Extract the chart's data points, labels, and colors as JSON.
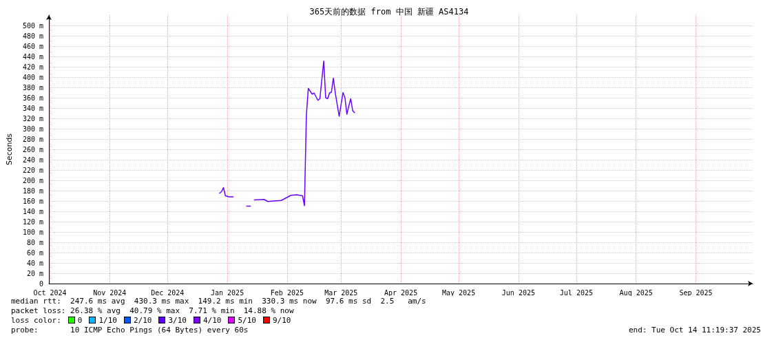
{
  "chart_data": {
    "type": "line",
    "title": "365天前的数据 from 中国 新疆 AS4134",
    "ylabel": "Seconds",
    "x": [
      "2025-01-11",
      "2025-01-12",
      "2025-01-13",
      "2025-01-14",
      "2025-01-16",
      "2025-01-18",
      "2025-01-21",
      "2025-01-25",
      "2025-01-27",
      "2025-01-28",
      "2025-01-29",
      "2025-02-03",
      "2025-02-05",
      "2025-02-08",
      "2025-02-12",
      "2025-02-15",
      "2025-02-17",
      "2025-02-20",
      "2025-02-23",
      "2025-02-24",
      "2025-02-25",
      "2025-02-26",
      "2025-02-28",
      "2025-03-01",
      "2025-03-02",
      "2025-03-03",
      "2025-03-04",
      "2025-03-06",
      "2025-03-07",
      "2025-03-08",
      "2025-03-09",
      "2025-03-10",
      "2025-03-11",
      "2025-03-12",
      "2025-03-14",
      "2025-03-16",
      "2025-03-17",
      "2025-03-18",
      "2025-03-19",
      "2025-03-20",
      "2025-03-21",
      "2025-03-22"
    ],
    "series": [
      {
        "color": "#6a00ff",
        "values": [
          175,
          178,
          186,
          170,
          168,
          168,
          null,
          150,
          150,
          null,
          162,
          163,
          159,
          160,
          161,
          167,
          171,
          172,
          170,
          151,
          326,
          378,
          367,
          369,
          362,
          355,
          358,
          431,
          360,
          358,
          369,
          371,
          398,
          369,
          324,
          370,
          360,
          328,
          344,
          358,
          335,
          331
        ]
      }
    ],
    "xlim": [
      "2024-10-14T11:19",
      "2025-10-14T11:19"
    ],
    "xticks": [
      {
        "value": "2024-10-15",
        "label": "Oct 2024"
      },
      {
        "value": "2024-11-15",
        "label": "Nov 2024"
      },
      {
        "value": "2024-12-15",
        "label": "Dec 2024"
      },
      {
        "value": "2025-01-15",
        "label": "Jan 2025"
      },
      {
        "value": "2025-02-15",
        "label": "Feb 2025"
      },
      {
        "value": "2025-03-15",
        "label": "Mar 2025"
      },
      {
        "value": "2025-04-15",
        "label": "Apr 2025"
      },
      {
        "value": "2025-05-15",
        "label": "May 2025"
      },
      {
        "value": "2025-06-15",
        "label": "Jun 2025"
      },
      {
        "value": "2025-07-15",
        "label": "Jul 2025"
      },
      {
        "value": "2025-08-15",
        "label": "Aug 2025"
      },
      {
        "value": "2025-09-15",
        "label": "Sep 2025"
      }
    ],
    "ylim": [
      0,
      520
    ],
    "yticks": [
      0,
      {
        "value": 20,
        "label": "20 m"
      },
      {
        "value": 40,
        "label": "40 m"
      },
      {
        "value": 60,
        "label": "60 m"
      },
      {
        "value": 80,
        "label": "80 m"
      },
      {
        "value": 100,
        "label": "100 m"
      },
      {
        "value": 120,
        "label": "120 m"
      },
      {
        "value": 140,
        "label": "140 m"
      },
      {
        "value": 160,
        "label": "160 m"
      },
      {
        "value": 180,
        "label": "180 m"
      },
      {
        "value": 200,
        "label": "200 m"
      },
      {
        "value": 220,
        "label": "220 m"
      },
      {
        "value": 240,
        "label": "240 m"
      },
      {
        "value": 260,
        "label": "260 m"
      },
      {
        "value": 280,
        "label": "280 m"
      },
      {
        "value": 300,
        "label": "300 m"
      },
      {
        "value": 320,
        "label": "320 m"
      },
      {
        "value": 340,
        "label": "340 m"
      },
      {
        "value": 360,
        "label": "360 m"
      },
      {
        "value": 380,
        "label": "380 m"
      },
      {
        "value": 400,
        "label": "400 m"
      },
      {
        "value": 420,
        "label": "420 m"
      },
      {
        "value": 440,
        "label": "440 m"
      },
      {
        "value": 460,
        "label": "460 m"
      },
      {
        "value": 480,
        "label": "480 m"
      },
      {
        "value": 500,
        "label": "500 m"
      }
    ],
    "grid": true,
    "marker": "none",
    "line_style": "solid",
    "annotations": [
      "median rtt:  247.6 ms avg  430.3 ms max  149.2 ms min  330.3 ms now  97.6 ms sd  2.5   am/s",
      "packet loss: 26.38 % avg  40.79 % max  7.71 % min  14.88 % now",
      "loss color:",
      "0",
      "1/10",
      "2/10",
      "3/10",
      "4/10",
      "5/10",
      "9/10",
      "probe:       10 ICMP Echo Pings (64 Bytes) every 60s",
      "end: Tue Oct 14 11:19:37 2025"
    ]
  }
}
